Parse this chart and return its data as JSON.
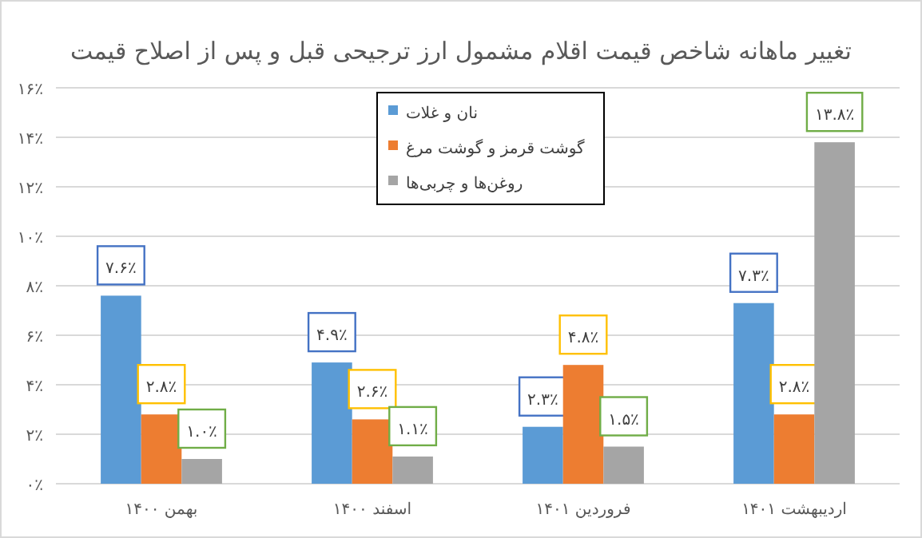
{
  "chart_data": {
    "type": "bar",
    "title": "تغییر ماهانه شاخص قیمت اقلام مشمول ارز ترجیحی قبل و پس از اصلاح قیمت",
    "categories": [
      "بهمن ۱۴۰۰",
      "اسفند ۱۴۰۰",
      "فروردین ۱۴۰۱",
      "اردیبهشت ۱۴۰۱"
    ],
    "series": [
      {
        "name": "نان و غلات",
        "color": "#5b9bd5",
        "values": [
          7.6,
          4.9,
          2.3,
          7.3
        ],
        "value_labels": [
          "۷.۶٪",
          "۴.۹٪",
          "۲.۳٪",
          "۷.۳٪"
        ]
      },
      {
        "name": "گوشت قرمز و گوشت مرغ",
        "color": "#ed7d31",
        "values": [
          2.8,
          2.6,
          4.8,
          2.8
        ],
        "value_labels": [
          "۲.۸٪",
          "۲.۶٪",
          "۴.۸٪",
          "۲.۸٪"
        ]
      },
      {
        "name": "روغن‌ها و چربی‌ها",
        "color": "#a5a5a5",
        "values": [
          1.0,
          1.1,
          1.5,
          13.8
        ],
        "value_labels": [
          "۱.۰٪",
          "۱.۱٪",
          "۱.۵٪",
          "۱۳.۸٪"
        ]
      }
    ],
    "ylim": [
      0,
      16
    ],
    "yticks": [
      {
        "value": 0,
        "label": "۰٪"
      },
      {
        "value": 2,
        "label": "۲٪"
      },
      {
        "value": 4,
        "label": "۴٪"
      },
      {
        "value": 6,
        "label": "۶٪"
      },
      {
        "value": 8,
        "label": "۸٪"
      },
      {
        "value": 10,
        "label": "۱۰٪"
      },
      {
        "value": 12,
        "label": "۱۲٪"
      },
      {
        "value": 14,
        "label": "۱۴٪"
      },
      {
        "value": 16,
        "label": "۱۶٪"
      }
    ],
    "grid": "y",
    "legend": "top"
  }
}
